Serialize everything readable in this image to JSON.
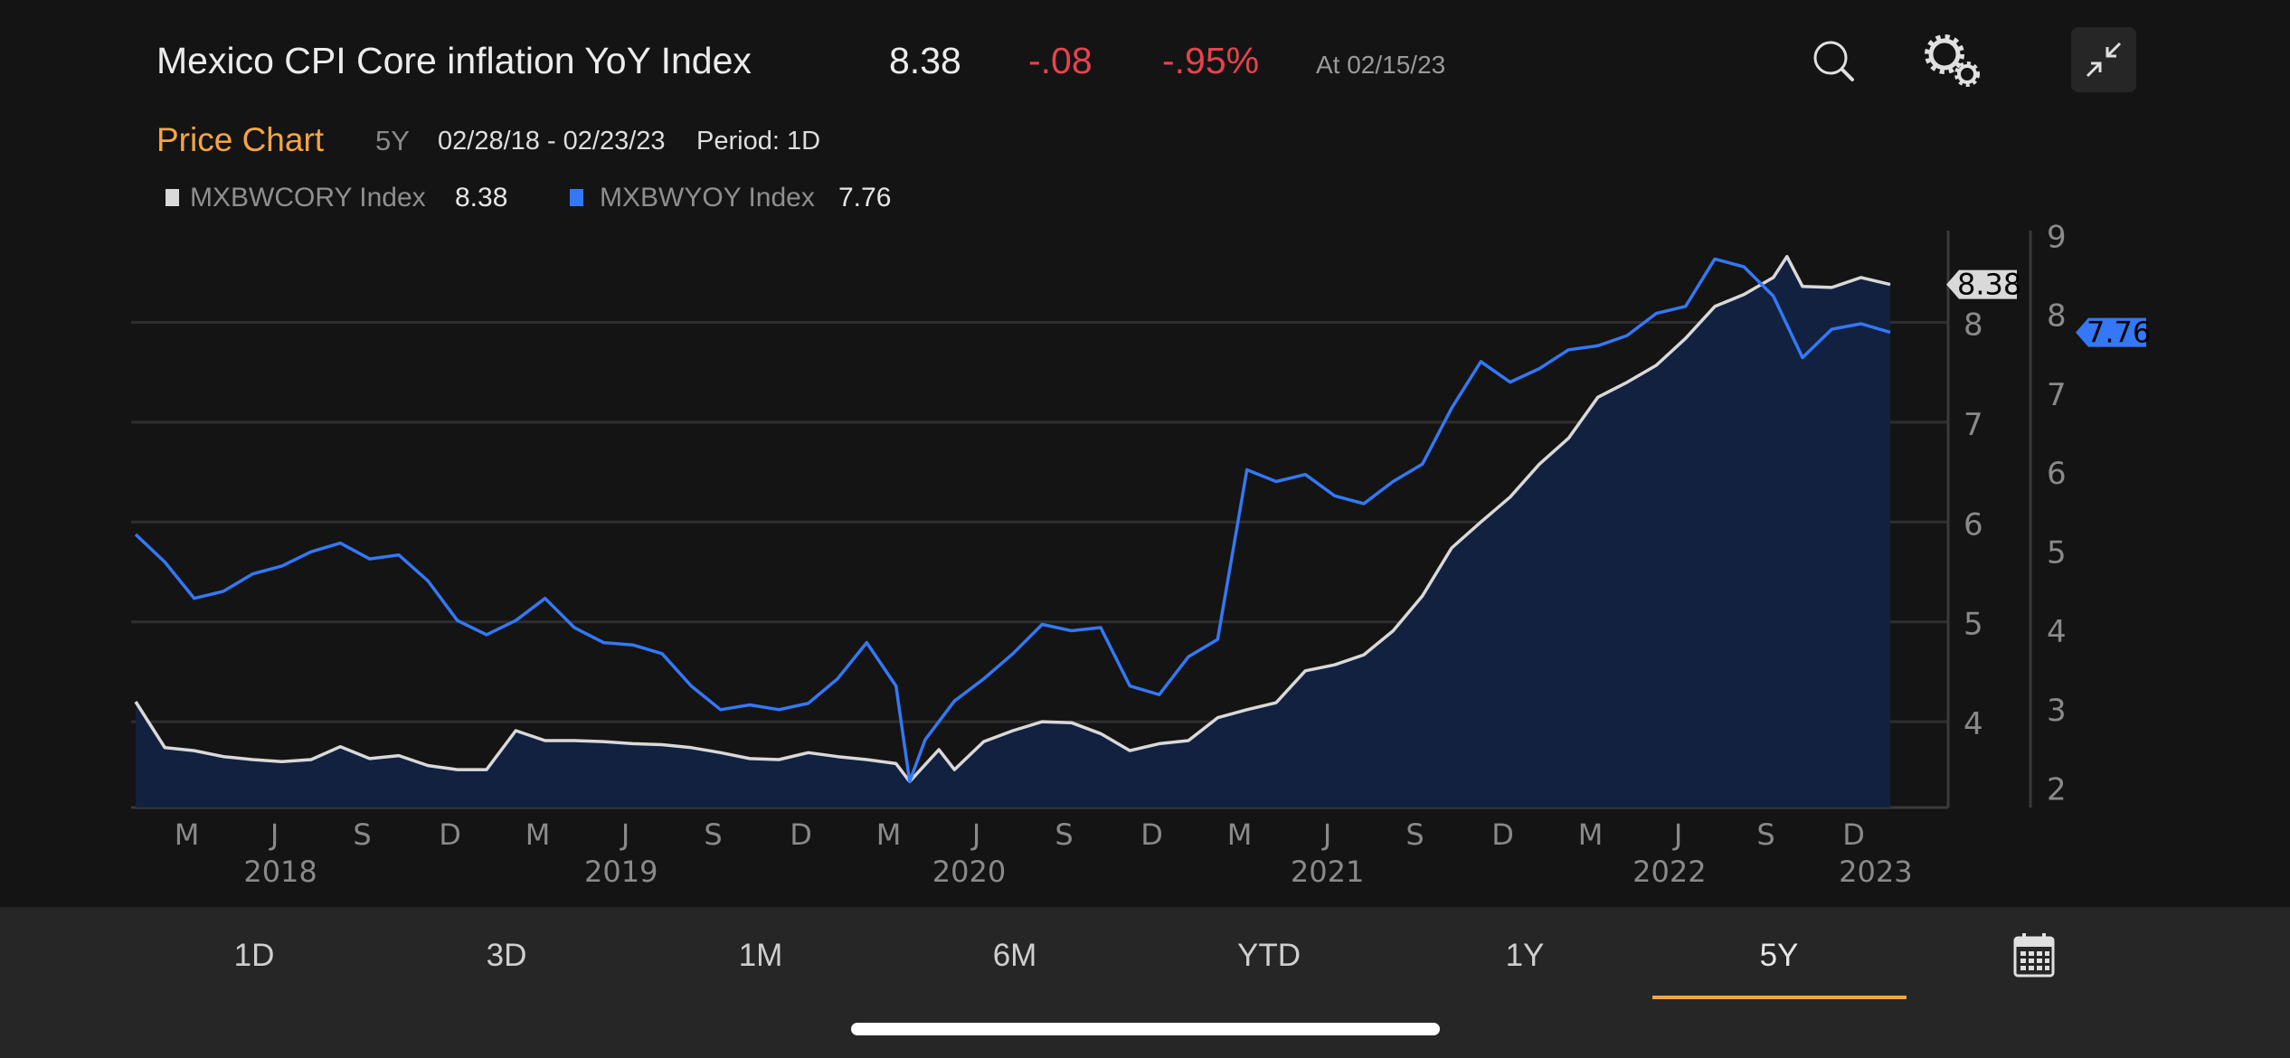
{
  "header": {
    "title": "Mexico CPI Core inflation YoY Index",
    "last": "8.38",
    "change": "-.08",
    "change_pct": "-.95%",
    "as_of": "At 02/15/23",
    "icons": [
      "search-icon",
      "settings-gears-icon",
      "collapse-arrows-icon"
    ]
  },
  "subheader": {
    "label": "Price Chart",
    "range": "5Y",
    "dates": "02/28/18 - 02/23/23",
    "period": "Period: 1D"
  },
  "legend": [
    {
      "name": "MXBWCORY Index",
      "value": "8.38",
      "color": "#d9d9d9"
    },
    {
      "name": "MXBWYOY Index",
      "value": "7.76",
      "color": "#3478f6"
    }
  ],
  "tabs": {
    "items": [
      "1D",
      "3D",
      "1M",
      "6M",
      "YTD",
      "1Y",
      "5Y"
    ],
    "selected": "5Y",
    "calendar_icon": "calendar-icon",
    "accent": "#f5a543"
  },
  "chart_data": {
    "type": "line",
    "x_range": [
      "2018-02-28",
      "2023-02-23"
    ],
    "x_ticks": [
      [
        "2018-03",
        "M"
      ],
      [
        "2018-06",
        "J"
      ],
      [
        "2018-09",
        "S"
      ],
      [
        "2018-12",
        "D"
      ],
      [
        "2019-03",
        "M"
      ],
      [
        "2019-06",
        "J"
      ],
      [
        "2019-09",
        "S"
      ],
      [
        "2019-12",
        "D"
      ],
      [
        "2020-03",
        "M"
      ],
      [
        "2020-06",
        "J"
      ],
      [
        "2020-09",
        "S"
      ],
      [
        "2020-12",
        "D"
      ],
      [
        "2021-03",
        "M"
      ],
      [
        "2021-06",
        "J"
      ],
      [
        "2021-09",
        "S"
      ],
      [
        "2021-12",
        "D"
      ],
      [
        "2022-03",
        "M"
      ],
      [
        "2022-06",
        "J"
      ],
      [
        "2022-09",
        "S"
      ],
      [
        "2022-12",
        "D"
      ]
    ],
    "x_year_labels": [
      "2018",
      "2019",
      "2020",
      "2021",
      "2022",
      "2023"
    ],
    "grid": true,
    "axes": {
      "left": {
        "series": "MXBWCORY Index",
        "ylim": [
          3.14,
          8.92
        ],
        "ticks": [
          "4",
          "5",
          "6",
          "7",
          "8"
        ]
      },
      "right": {
        "series": "MXBWYOY Index",
        "ylim": [
          1.74,
          9.05
        ],
        "ticks": [
          "2",
          "3",
          "4",
          "5",
          "6",
          "7",
          "8",
          "9"
        ]
      }
    },
    "series": [
      {
        "name": "MXBWCORY Index",
        "axis": "left",
        "color": "#d9d9d9",
        "fill": "#12213f",
        "last": "8.38",
        "points": [
          [
            "2018-02",
            4.2
          ],
          [
            "2018-03",
            3.74
          ],
          [
            "2018-04",
            3.71
          ],
          [
            "2018-05",
            3.65
          ],
          [
            "2018-06",
            3.62
          ],
          [
            "2018-07",
            3.6
          ],
          [
            "2018-08",
            3.62
          ],
          [
            "2018-09",
            3.75
          ],
          [
            "2018-10",
            3.63
          ],
          [
            "2018-11",
            3.66
          ],
          [
            "2018-12",
            3.56
          ],
          [
            "2019-01",
            3.52
          ],
          [
            "2019-02",
            3.52
          ],
          [
            "2019-03",
            3.91
          ],
          [
            "2019-04",
            3.81
          ],
          [
            "2019-05",
            3.81
          ],
          [
            "2019-06",
            3.8
          ],
          [
            "2019-07",
            3.78
          ],
          [
            "2019-08",
            3.77
          ],
          [
            "2019-09",
            3.74
          ],
          [
            "2019-10",
            3.69
          ],
          [
            "2019-11",
            3.63
          ],
          [
            "2019-12",
            3.62
          ],
          [
            "2020-01",
            3.69
          ],
          [
            "2020-02",
            3.65
          ],
          [
            "2020-03",
            3.62
          ],
          [
            "2020-04",
            3.58
          ],
          [
            "2020-04-15",
            3.4
          ],
          [
            "2020-05-15",
            3.72
          ],
          [
            "2020-06",
            3.52
          ],
          [
            "2020-07",
            3.8
          ],
          [
            "2020-08",
            3.91
          ],
          [
            "2020-09",
            4.0
          ],
          [
            "2020-10",
            3.99
          ],
          [
            "2020-11",
            3.88
          ],
          [
            "2020-12",
            3.71
          ],
          [
            "2021-01",
            3.78
          ],
          [
            "2021-02",
            3.81
          ],
          [
            "2021-03",
            4.04
          ],
          [
            "2021-04",
            4.12
          ],
          [
            "2021-05",
            4.19
          ],
          [
            "2021-06",
            4.51
          ],
          [
            "2021-07",
            4.57
          ],
          [
            "2021-08",
            4.67
          ],
          [
            "2021-09",
            4.91
          ],
          [
            "2021-10",
            5.26
          ],
          [
            "2021-11",
            5.74
          ],
          [
            "2021-12",
            6.0
          ],
          [
            "2022-01",
            6.25
          ],
          [
            "2022-02",
            6.58
          ],
          [
            "2022-03",
            6.84
          ],
          [
            "2022-04",
            7.25
          ],
          [
            "2022-05",
            7.4
          ],
          [
            "2022-06",
            7.57
          ],
          [
            "2022-07",
            7.84
          ],
          [
            "2022-08",
            8.16
          ],
          [
            "2022-09",
            8.28
          ],
          [
            "2022-10",
            8.45
          ],
          [
            "2022-10-15",
            8.66
          ],
          [
            "2022-11",
            8.36
          ],
          [
            "2022-12",
            8.35
          ],
          [
            "2023-01",
            8.45
          ],
          [
            "2023-02",
            8.38
          ]
        ]
      },
      {
        "name": "MXBWYOY Index",
        "axis": "right",
        "color": "#3478f6",
        "last": "7.76",
        "points": [
          [
            "2018-02",
            5.2
          ],
          [
            "2018-03",
            4.85
          ],
          [
            "2018-04",
            4.39
          ],
          [
            "2018-05",
            4.48
          ],
          [
            "2018-06",
            4.7
          ],
          [
            "2018-07",
            4.8
          ],
          [
            "2018-08",
            4.98
          ],
          [
            "2018-09",
            5.09
          ],
          [
            "2018-10",
            4.89
          ],
          [
            "2018-11",
            4.94
          ],
          [
            "2018-12",
            4.61
          ],
          [
            "2019-01",
            4.11
          ],
          [
            "2019-02",
            3.93
          ],
          [
            "2019-03",
            4.11
          ],
          [
            "2019-04",
            4.39
          ],
          [
            "2019-05",
            4.02
          ],
          [
            "2019-06",
            3.83
          ],
          [
            "2019-07",
            3.8
          ],
          [
            "2019-08",
            3.69
          ],
          [
            "2019-09",
            3.28
          ],
          [
            "2019-10",
            2.98
          ],
          [
            "2019-11",
            3.04
          ],
          [
            "2019-12",
            2.98
          ],
          [
            "2020-01",
            3.06
          ],
          [
            "2020-02",
            3.37
          ],
          [
            "2020-03",
            3.83
          ],
          [
            "2020-04",
            3.28
          ],
          [
            "2020-04-15",
            2.07
          ],
          [
            "2020-05",
            2.6
          ],
          [
            "2020-06",
            3.09
          ],
          [
            "2020-07",
            3.37
          ],
          [
            "2020-08",
            3.69
          ],
          [
            "2020-09",
            4.06
          ],
          [
            "2020-10",
            3.98
          ],
          [
            "2020-11",
            4.02
          ],
          [
            "2020-12",
            3.28
          ],
          [
            "2021-01",
            3.17
          ],
          [
            "2021-02",
            3.65
          ],
          [
            "2021-03",
            3.87
          ],
          [
            "2021-04",
            6.02
          ],
          [
            "2021-05",
            5.87
          ],
          [
            "2021-06",
            5.96
          ],
          [
            "2021-07",
            5.69
          ],
          [
            "2021-08",
            5.59
          ],
          [
            "2021-09",
            5.87
          ],
          [
            "2021-10",
            6.09
          ],
          [
            "2021-11",
            6.8
          ],
          [
            "2021-12",
            7.39
          ],
          [
            "2022-01",
            7.13
          ],
          [
            "2022-02",
            7.3
          ],
          [
            "2022-03",
            7.54
          ],
          [
            "2022-04",
            7.59
          ],
          [
            "2022-05",
            7.72
          ],
          [
            "2022-06",
            8.0
          ],
          [
            "2022-07",
            8.09
          ],
          [
            "2022-08",
            8.69
          ],
          [
            "2022-09",
            8.59
          ],
          [
            "2022-10",
            8.22
          ],
          [
            "2022-11",
            7.44
          ],
          [
            "2022-12",
            7.8
          ],
          [
            "2023-01",
            7.87
          ],
          [
            "2023-02",
            7.76
          ]
        ]
      }
    ]
  }
}
